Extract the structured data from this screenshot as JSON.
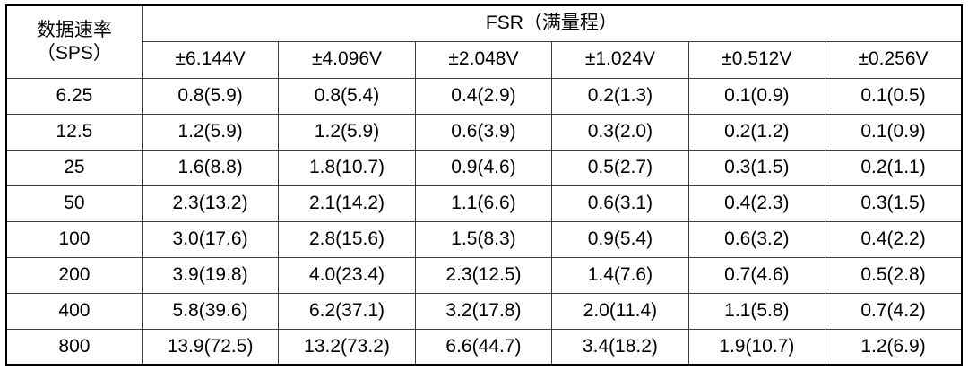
{
  "chart_data": {
    "type": "table",
    "corner_header_line1": "数据速率",
    "corner_header_line2": "（SPS）",
    "group_header": "FSR（满量程）",
    "columns": [
      "±6.144V",
      "±4.096V",
      "±2.048V",
      "±1.024V",
      "±0.512V",
      "±0.256V"
    ],
    "rows": [
      {
        "rate": "6.25",
        "values": [
          "0.8(5.9)",
          "0.8(5.4)",
          "0.4(2.9)",
          "0.2(1.3)",
          "0.1(0.9)",
          "0.1(0.5)"
        ]
      },
      {
        "rate": "12.5",
        "values": [
          "1.2(5.9)",
          "1.2(5.9)",
          "0.6(3.9)",
          "0.3(2.0)",
          "0.2(1.2)",
          "0.1(0.9)"
        ]
      },
      {
        "rate": "25",
        "values": [
          "1.6(8.8)",
          "1.8(10.7)",
          "0.9(4.6)",
          "0.5(2.7)",
          "0.3(1.5)",
          "0.2(1.1)"
        ]
      },
      {
        "rate": "50",
        "values": [
          "2.3(13.2)",
          "2.1(14.2)",
          "1.1(6.6)",
          "0.6(3.1)",
          "0.4(2.3)",
          "0.3(1.5)"
        ]
      },
      {
        "rate": "100",
        "values": [
          "3.0(17.6)",
          "2.8(15.6)",
          "1.5(8.3)",
          "0.9(5.4)",
          "0.6(3.2)",
          "0.4(2.2)"
        ]
      },
      {
        "rate": "200",
        "values": [
          "3.9(19.8)",
          "4.0(23.4)",
          "2.3(12.5)",
          "1.4(7.6)",
          "0.7(4.6)",
          "0.5(2.8)"
        ]
      },
      {
        "rate": "400",
        "values": [
          "5.8(39.6)",
          "6.2(37.1)",
          "3.2(17.8)",
          "2.0(11.4)",
          "1.1(5.8)",
          "0.7(4.2)"
        ]
      },
      {
        "rate": "800",
        "values": [
          "13.9(72.5)",
          "13.2(73.2)",
          "6.6(44.7)",
          "3.4(18.2)",
          "1.9(10.7)",
          "1.2(6.9)"
        ]
      }
    ],
    "colors": {
      "border_outer": "#000000",
      "border_inner": "#3d3d3d",
      "text": "#000000",
      "background": "#ffffff"
    }
  }
}
